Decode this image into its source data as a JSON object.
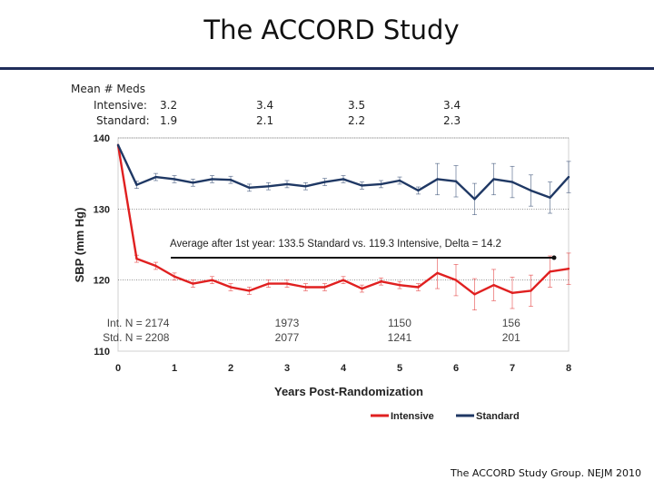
{
  "page": {
    "title": "The ACCORD Study",
    "citation": "The ACCORD Study Group. NEJM 2010"
  },
  "meds": {
    "header": "Mean # Meds",
    "intensive_label": "Intensive:",
    "standard_label": "Standard:",
    "intensive_values": [
      "3.2",
      "3.4",
      "3.5",
      "3.4"
    ],
    "standard_values": [
      "1.9",
      "2.1",
      "2.2",
      "2.3"
    ]
  },
  "chart_data": {
    "type": "line",
    "xlabel": "Years Post-Randomization",
    "ylabel": "SBP (mm Hg)",
    "xlim": [
      0,
      8
    ],
    "ylim": [
      110,
      140
    ],
    "xticks": [
      "0",
      "1",
      "2",
      "3",
      "4",
      "5",
      "6",
      "7",
      "8"
    ],
    "yticks": [
      "110",
      "120",
      "130",
      "140"
    ],
    "legend_position": "bottom-right",
    "annotation": "Average after 1st year: 133.5 Standard vs. 119.3 Intensive, Delta = 14.2",
    "series": [
      {
        "name": "Intensive",
        "color": "#e02020",
        "x": [
          0,
          0.33,
          0.67,
          1,
          1.33,
          1.67,
          2,
          2.33,
          2.67,
          3,
          3.33,
          3.67,
          4,
          4.33,
          4.67,
          5,
          5.33,
          5.67,
          6,
          6.33,
          6.67,
          7,
          7.33,
          7.67,
          8
        ],
        "y": [
          139,
          123,
          122,
          120.5,
          119.5,
          120,
          119,
          118.5,
          119.5,
          119.5,
          119,
          119,
          120,
          118.8,
          119.8,
          119.3,
          119,
          121,
          120,
          118,
          119.3,
          118.2,
          118.5,
          121.2,
          121.6
        ]
      },
      {
        "name": "Standard",
        "color": "#1f3864",
        "x": [
          0,
          0.33,
          0.67,
          1,
          1.33,
          1.67,
          2,
          2.33,
          2.67,
          3,
          3.33,
          3.67,
          4,
          4.33,
          4.67,
          5,
          5.33,
          5.67,
          6,
          6.33,
          6.67,
          7,
          7.33,
          7.67,
          8
        ],
        "y": [
          139,
          133.4,
          134.5,
          134.2,
          133.7,
          134.2,
          134.1,
          133.0,
          133.2,
          133.5,
          133.2,
          133.8,
          134.2,
          133.3,
          133.5,
          134.0,
          132.6,
          134.2,
          133.9,
          131.4,
          134.2,
          133.8,
          132.6,
          131.6,
          134.5
        ]
      }
    ],
    "n_rows": [
      {
        "label": "Int. N =",
        "values": [
          "2174",
          "1973",
          "1150",
          "156"
        ]
      },
      {
        "label": "Std. N =",
        "values": [
          "2208",
          "2077",
          "1241",
          "201"
        ]
      }
    ]
  }
}
